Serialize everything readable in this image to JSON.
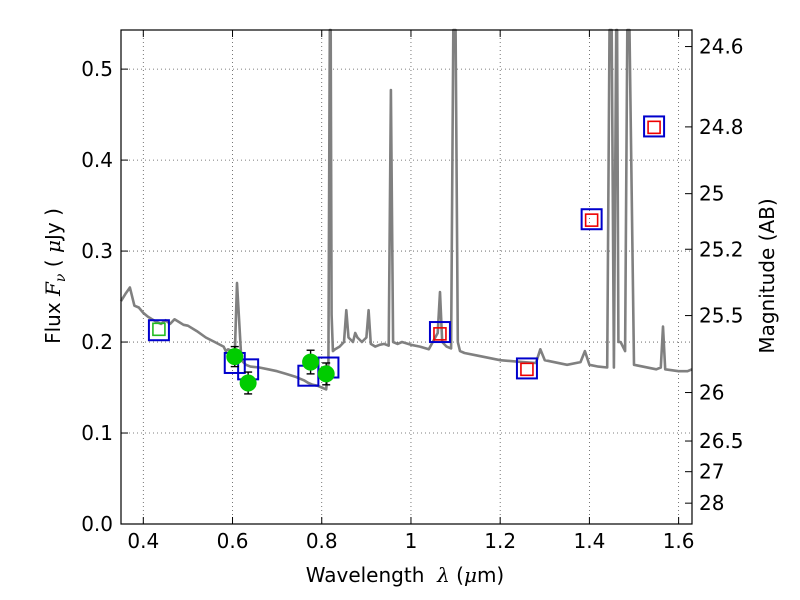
{
  "chart_data": {
    "type": "scatter",
    "title": "",
    "xlabel_parts": {
      "prefix": "Wavelength  ",
      "symbol": "λ",
      "open": " (",
      "unit_mu": "μ",
      "unit_rest": "m)"
    },
    "ylabel_parts": {
      "prefix": "Flux  ",
      "symbol": "F",
      "sub": "ν",
      "mid": "  ( ",
      "unit_mu": "μ",
      "unit_rest": "Jy )"
    },
    "y2label": "Magnitude (AB)",
    "xlim": [
      0.35,
      1.63
    ],
    "ylim": [
      0.0,
      0.543
    ],
    "grid": true,
    "x_ticks": [
      0.4,
      0.6,
      0.8,
      1.0,
      1.2,
      1.4,
      1.6
    ],
    "x_tick_labels": [
      "0.4",
      "0.6",
      "0.8",
      "1",
      "1.2",
      "1.4",
      "1.6"
    ],
    "y_ticks": [
      0.0,
      0.1,
      0.2,
      0.3,
      0.4,
      0.5
    ],
    "y_tick_labels": [
      "0.0",
      "0.1",
      "0.2",
      "0.3",
      "0.4",
      "0.5"
    ],
    "y2_ticks": [
      {
        "label": "24.6",
        "flux": 0.5248
      },
      {
        "label": "24.8",
        "flux": 0.4365
      },
      {
        "label": "25",
        "flux": 0.3631
      },
      {
        "label": "25.2",
        "flux": 0.302
      },
      {
        "label": "25.5",
        "flux": 0.2291
      },
      {
        "label": "26",
        "flux": 0.1445
      },
      {
        "label": "26.5",
        "flux": 0.0912
      },
      {
        "label": "27",
        "flux": 0.0575
      },
      {
        "label": "28",
        "flux": 0.0229
      }
    ],
    "colors": {
      "model": "#808080",
      "blue_square": "#0000cc",
      "red_square": "#ee0000",
      "green_square": "#22bb22",
      "green_point": "#00cc00",
      "error_bar": "#000000",
      "grid": "#555555"
    },
    "series": [
      {
        "kind": "model_spectrum",
        "x": [
          0.35,
          0.36,
          0.37,
          0.38,
          0.39,
          0.4,
          0.41,
          0.42,
          0.43,
          0.44,
          0.45,
          0.46,
          0.47,
          0.48,
          0.49,
          0.5,
          0.52,
          0.54,
          0.56,
          0.58,
          0.585,
          0.59,
          0.6,
          0.605,
          0.61,
          0.62,
          0.63,
          0.64,
          0.66,
          0.68,
          0.7,
          0.72,
          0.74,
          0.75,
          0.76,
          0.77,
          0.78,
          0.79,
          0.8,
          0.81,
          0.815,
          0.818,
          0.82,
          0.822,
          0.825,
          0.83,
          0.84,
          0.85,
          0.855,
          0.86,
          0.87,
          0.875,
          0.88,
          0.89,
          0.9,
          0.905,
          0.91,
          0.92,
          0.93,
          0.94,
          0.95,
          0.955,
          0.96,
          0.97,
          0.98,
          1.0,
          1.02,
          1.04,
          1.06,
          1.065,
          1.07,
          1.08,
          1.09,
          1.095,
          1.1,
          1.105,
          1.11,
          1.12,
          1.15,
          1.2,
          1.25,
          1.28,
          1.29,
          1.3,
          1.35,
          1.38,
          1.39,
          1.4,
          1.42,
          1.44,
          1.445,
          1.45,
          1.455,
          1.46,
          1.462,
          1.465,
          1.47,
          1.48,
          1.485,
          1.49,
          1.5,
          1.55,
          1.56,
          1.565,
          1.57,
          1.6,
          1.62,
          1.63
        ],
        "y": [
          0.245,
          0.253,
          0.26,
          0.24,
          0.238,
          0.232,
          0.228,
          0.225,
          0.222,
          0.22,
          0.224,
          0.22,
          0.225,
          0.222,
          0.219,
          0.218,
          0.212,
          0.205,
          0.2,
          0.195,
          0.19,
          0.192,
          0.19,
          0.187,
          0.265,
          0.18,
          0.175,
          0.173,
          0.172,
          0.17,
          0.168,
          0.165,
          0.162,
          0.16,
          0.158,
          0.155,
          0.153,
          0.152,
          0.15,
          0.148,
          0.175,
          0.55,
          0.55,
          0.23,
          0.19,
          0.192,
          0.195,
          0.2,
          0.235,
          0.205,
          0.2,
          0.21,
          0.205,
          0.2,
          0.205,
          0.235,
          0.198,
          0.195,
          0.197,
          0.198,
          0.196,
          0.477,
          0.2,
          0.198,
          0.2,
          0.197,
          0.195,
          0.192,
          0.21,
          0.255,
          0.2,
          0.195,
          0.193,
          0.55,
          0.55,
          0.2,
          0.19,
          0.188,
          0.185,
          0.18,
          0.178,
          0.177,
          0.192,
          0.18,
          0.175,
          0.178,
          0.19,
          0.175,
          0.173,
          0.172,
          0.55,
          0.55,
          0.172,
          0.55,
          0.55,
          0.2,
          0.2,
          0.19,
          0.55,
          0.55,
          0.175,
          0.17,
          0.172,
          0.217,
          0.17,
          0.168,
          0.168,
          0.17
        ]
      },
      {
        "kind": "blue_squares",
        "x": [
          0.435,
          0.605,
          0.635,
          0.77,
          0.815,
          1.065,
          1.26,
          1.405,
          1.545
        ],
        "y": [
          0.213,
          0.177,
          0.17,
          0.163,
          0.172,
          0.211,
          0.171,
          0.335,
          0.437
        ]
      },
      {
        "kind": "red_squares",
        "x": [
          1.065,
          1.26,
          1.405,
          1.545
        ],
        "y": [
          0.209,
          0.17,
          0.334,
          0.436
        ]
      },
      {
        "kind": "green_squares",
        "x": [
          0.435
        ],
        "y": [
          0.214
        ]
      },
      {
        "kind": "green_points",
        "x": [
          0.605,
          0.635,
          0.775,
          0.81
        ],
        "y": [
          0.184,
          0.155,
          0.178,
          0.165
        ],
        "err": [
          0.011,
          0.012,
          0.013,
          0.012
        ]
      }
    ]
  }
}
